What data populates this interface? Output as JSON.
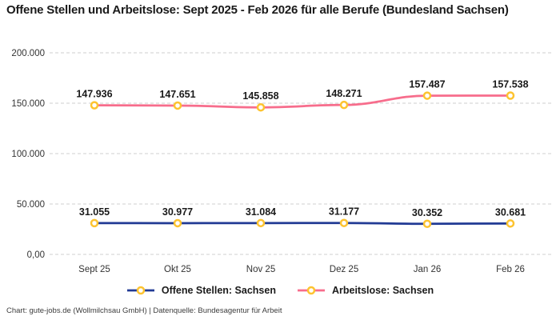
{
  "title": "Offene Stellen und Arbeitslose: Sept 2025 - Feb 2026 für alle Berufe (Bundesland Sachsen)",
  "footer": "Chart: gute-jobs.de (Wollmilchsau GmbH) | Datenquelle: Bundesagentur für Arbeit",
  "colors": {
    "offene_stellen": "#213a94",
    "arbeitslose": "#f76d8c",
    "marker_ring": "#fdc330",
    "marker_fill": "#ffffff",
    "grid": "#cfcfcf",
    "data_label": "#1a1a1a",
    "tick_label": "#333333"
  },
  "chart_data": {
    "type": "line",
    "title": "Offene Stellen und Arbeitslose: Sept 2025 - Feb 2026 für alle Berufe (Bundesland Sachsen)",
    "categories": [
      "Sept 25",
      "Okt 25",
      "Nov 25",
      "Dez 25",
      "Jan 26",
      "Feb 26"
    ],
    "series": [
      {
        "name": "Offene Stellen: Sachsen",
        "color_key": "offene_stellen",
        "values": [
          31055,
          30977,
          31084,
          31177,
          30352,
          30681
        ],
        "labels": [
          "31.055",
          "30.977",
          "31.084",
          "31.177",
          "30.352",
          "30.681"
        ]
      },
      {
        "name": "Arbeitslose: Sachsen",
        "color_key": "arbeitslose",
        "values": [
          147936,
          147651,
          145858,
          148271,
          157487,
          157538
        ],
        "labels": [
          "147.936",
          "147.651",
          "145.858",
          "148.271",
          "157.487",
          "157.538"
        ]
      }
    ],
    "ylim": [
      0,
      200000
    ],
    "y_ticks": [
      {
        "value": 0,
        "label": "0,00"
      },
      {
        "value": 50000,
        "label": "50.000"
      },
      {
        "value": 100000,
        "label": "100.000"
      },
      {
        "value": 150000,
        "label": "150.000"
      },
      {
        "value": 200000,
        "label": "200.000"
      }
    ],
    "grid": "dashed-horizontal",
    "legend_position": "bottom",
    "xlabel": "",
    "ylabel": ""
  }
}
